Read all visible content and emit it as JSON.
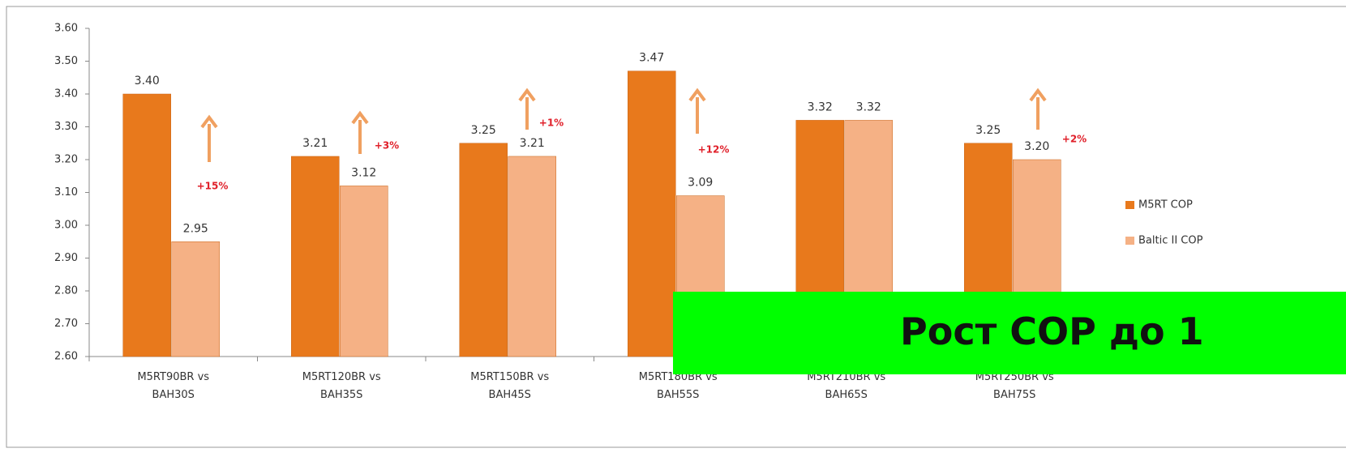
{
  "chart_data": {
    "type": "bar",
    "categories": [
      "M5RT90BR vs BAH30S",
      "M5RT120BR vs BAH35S",
      "M5RT150BR vs BAH45S",
      "M5RT180BR vs BAH55S",
      "M5RT210BR vs BAH65S",
      "M5RT250BR vs BAH75S"
    ],
    "series": [
      {
        "name": "M5RT COP",
        "color": "#e8791c",
        "values": [
          3.4,
          3.21,
          3.25,
          3.47,
          3.32,
          3.25
        ],
        "value_labels": [
          "3.40",
          "3.21",
          "3.25",
          "3.47",
          "3.32",
          "3.25"
        ]
      },
      {
        "name": "Baltic II COP",
        "color": "#f5b185",
        "values": [
          2.95,
          3.12,
          3.21,
          3.09,
          3.32,
          3.2
        ],
        "value_labels": [
          "2.95",
          "3.12",
          "3.21",
          "3.09",
          "3.32",
          "3.20"
        ]
      }
    ],
    "ylim": [
      2.6,
      3.6
    ],
    "yticks": [
      {
        "value": 2.6,
        "label": "2.60"
      },
      {
        "value": 2.7,
        "label": "2.70"
      },
      {
        "value": 2.8,
        "label": "2.80"
      },
      {
        "value": 2.9,
        "label": "2.90"
      },
      {
        "value": 3.0,
        "label": "3.00"
      },
      {
        "value": 3.1,
        "label": "3.10"
      },
      {
        "value": 3.2,
        "label": "3.20"
      },
      {
        "value": 3.3,
        "label": "3.30"
      },
      {
        "value": 3.4,
        "label": "3.40"
      },
      {
        "value": 3.5,
        "label": "3.50"
      },
      {
        "value": 3.6,
        "label": "3.60"
      }
    ],
    "annotations": [
      "+15%",
      "+3%",
      "+1%",
      "+12%",
      "+2%"
    ],
    "legend": "right",
    "grid": false
  },
  "banner": {
    "text": "Рост COP до 1"
  }
}
